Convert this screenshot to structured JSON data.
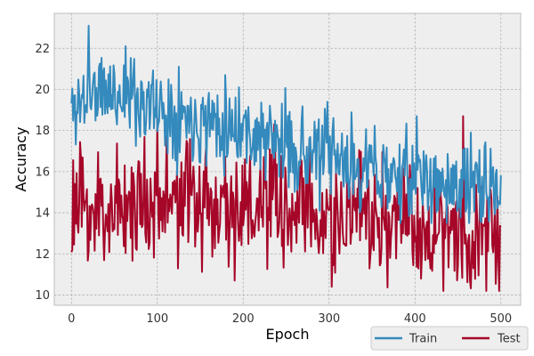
{
  "chart_data": {
    "type": "line",
    "title": "",
    "xlabel": "Epoch",
    "ylabel": "Accuracy",
    "xlim": [
      -20,
      523
    ],
    "ylim": [
      9.5,
      23.7
    ],
    "x_ticks": [
      0,
      100,
      200,
      300,
      400,
      500
    ],
    "y_ticks": [
      10,
      12,
      14,
      16,
      18,
      20,
      22
    ],
    "grid": true,
    "legend_position": "below-right",
    "colors": {
      "plot_background": "#eeeeee",
      "grid": "#b0b0b0",
      "Train": "#348abd",
      "Test": "#a60628"
    },
    "series": [
      {
        "name": "Train",
        "x": [
          0,
          25,
          50,
          75,
          100,
          125,
          150,
          175,
          200,
          225,
          250,
          275,
          300,
          325,
          350,
          375,
          400,
          425,
          450,
          475,
          500
        ],
        "values": [
          19.0,
          19.9,
          19.8,
          19.6,
          19.1,
          18.8,
          18.6,
          18.5,
          18.1,
          17.6,
          17.3,
          16.9,
          16.6,
          16.3,
          16.1,
          15.8,
          15.5,
          15.4,
          15.2,
          15.1,
          15.0
        ],
        "peaks": [
          {
            "x": 20,
            "y": 23.1
          },
          {
            "x": 63,
            "y": 22.1
          },
          {
            "x": 125,
            "y": 21.1
          },
          {
            "x": 195,
            "y": 20.1
          },
          {
            "x": 298,
            "y": 19.4
          },
          {
            "x": 402,
            "y": 18.7
          },
          {
            "x": 465,
            "y": 17.9
          }
        ]
      },
      {
        "name": "Test",
        "x": [
          0,
          25,
          50,
          75,
          100,
          125,
          150,
          175,
          200,
          225,
          250,
          275,
          300,
          325,
          350,
          375,
          400,
          425,
          450,
          475,
          500
        ],
        "values": [
          14.2,
          14.0,
          14.4,
          14.5,
          14.6,
          14.5,
          14.6,
          14.5,
          14.3,
          14.2,
          14.1,
          14.0,
          13.8,
          13.7,
          13.6,
          13.5,
          13.4,
          13.3,
          13.2,
          13.2,
          13.2
        ],
        "peaks": [
          {
            "x": 100,
            "y": 18.6
          },
          {
            "x": 236,
            "y": 18.3
          },
          {
            "x": 456,
            "y": 18.7
          },
          {
            "x": 303,
            "y": 10.4
          },
          {
            "x": 498,
            "y": 10.2
          },
          {
            "x": 190,
            "y": 10.7
          }
        ]
      }
    ]
  }
}
